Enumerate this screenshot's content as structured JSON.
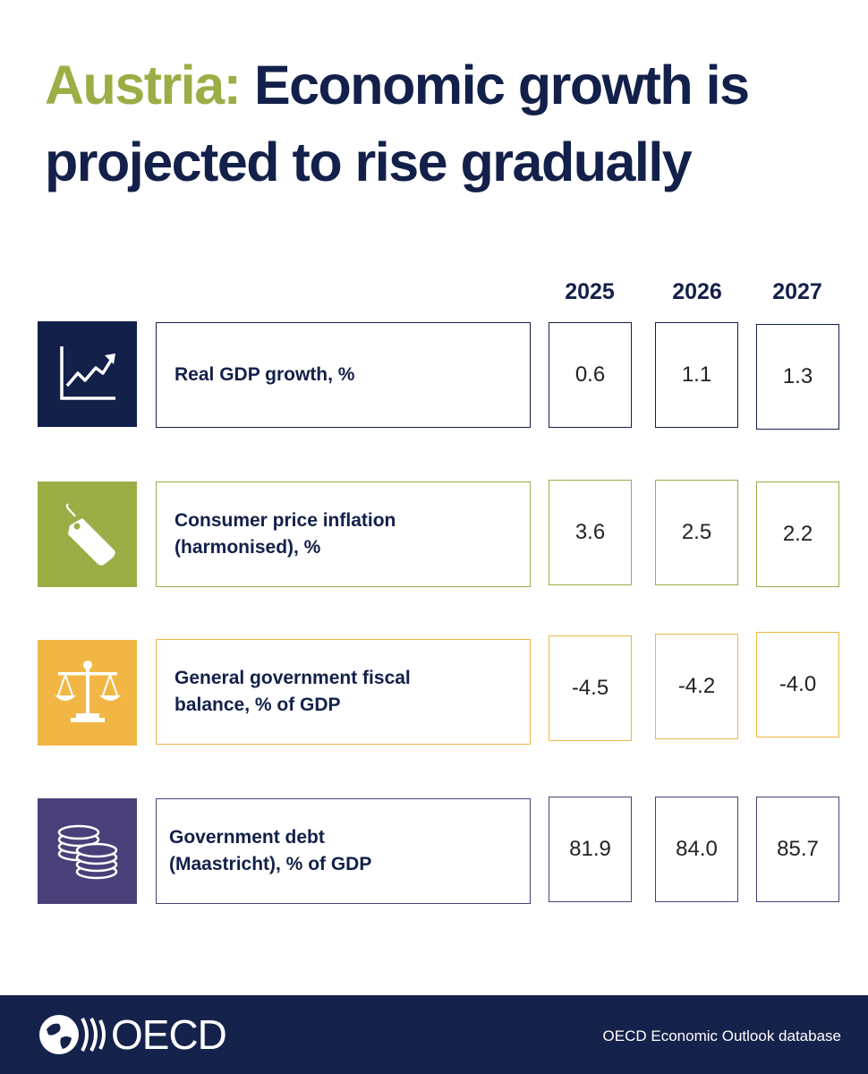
{
  "title": {
    "country": "Austria:",
    "line1_rest": "Economic growth is",
    "line2": "projected to rise gradually"
  },
  "years": [
    "2025",
    "2026",
    "2027"
  ],
  "rows": [
    {
      "label_line1": "Real GDP growth, %",
      "label_line2": "",
      "icon": "line-chart-icon",
      "color": "#13204a",
      "values": [
        "0.6",
        "1.1",
        "1.3"
      ]
    },
    {
      "label_line1": "Consumer price inflation",
      "label_line2": "(harmonised), %",
      "icon": "price-tag-icon",
      "color": "#9aae46",
      "values": [
        "3.6",
        "2.5",
        "2.2"
      ]
    },
    {
      "label_line1": "General government fiscal",
      "label_line2": "balance, % of GDP",
      "icon": "balance-scale-icon",
      "color": "#f2b644",
      "values": [
        "-4.5",
        "-4.2",
        "-4.0"
      ]
    },
    {
      "label_line1": "Government debt",
      "label_line2": "(Maastricht), % of GDP",
      "icon": "coins-icon",
      "color": "#4a3f79",
      "values": [
        "81.9",
        "84.0",
        "85.7"
      ]
    }
  ],
  "footer": {
    "logo_text": "OECD",
    "source": "OECD Economic Outlook database"
  }
}
